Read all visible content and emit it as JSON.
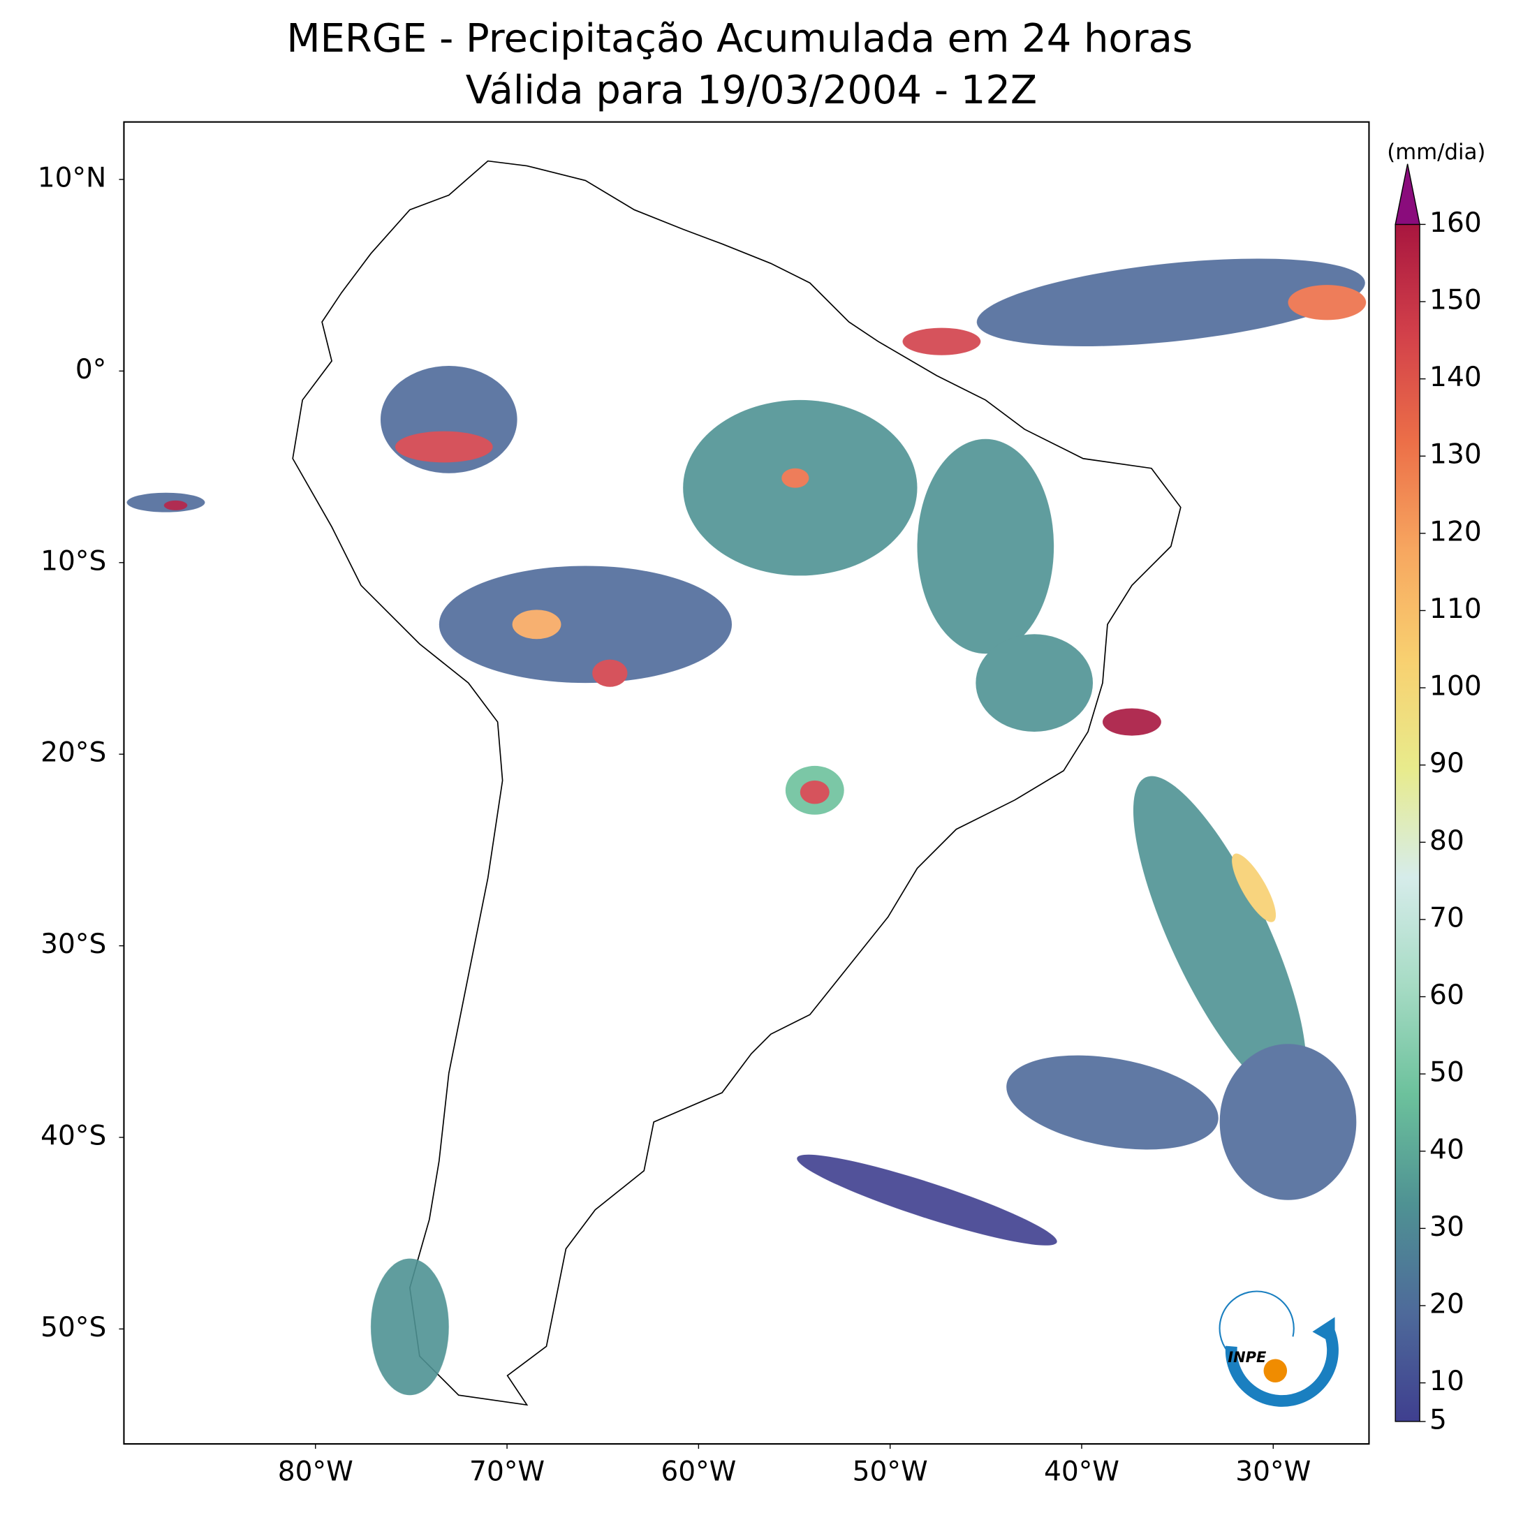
{
  "title": "MERGE - Precipitação Acumulada em 24 horas",
  "subtitle": "Válida para 19/03/2004 - 12Z",
  "map": {
    "xlim": [
      -90,
      -25
    ],
    "ylim": [
      -56,
      13
    ],
    "xticks": [
      {
        "value": -80,
        "label": "80°W"
      },
      {
        "value": -70,
        "label": "70°W"
      },
      {
        "value": -60,
        "label": "60°W"
      },
      {
        "value": -50,
        "label": "50°W"
      },
      {
        "value": -40,
        "label": "40°W"
      },
      {
        "value": -30,
        "label": "30°W"
      }
    ],
    "yticks": [
      {
        "value": 10,
        "label": "10°N"
      },
      {
        "value": 0,
        "label": "0°"
      },
      {
        "value": -10,
        "label": "10°S"
      },
      {
        "value": -20,
        "label": "20°S"
      },
      {
        "value": -30,
        "label": "30°S"
      },
      {
        "value": -40,
        "label": "40°S"
      },
      {
        "value": -50,
        "label": "50°S"
      }
    ]
  },
  "colorbar": {
    "label": "(mm/dia)",
    "lim": [
      5,
      160
    ],
    "ticks": [
      5,
      10,
      20,
      30,
      40,
      50,
      60,
      70,
      80,
      90,
      100,
      110,
      120,
      130,
      140,
      150,
      160
    ],
    "colors": [
      "#3f3f8f",
      "#4e6a9a",
      "#4f9293",
      "#6cc19c",
      "#a6dbc4",
      "#d6ecea",
      "#e8eb8c",
      "#f8d070",
      "#f7a760",
      "#ec6f48",
      "#d2404a",
      "#a8163f"
    ],
    "extend_color": "#8a0c7c"
  },
  "logo_text": "INPE"
}
